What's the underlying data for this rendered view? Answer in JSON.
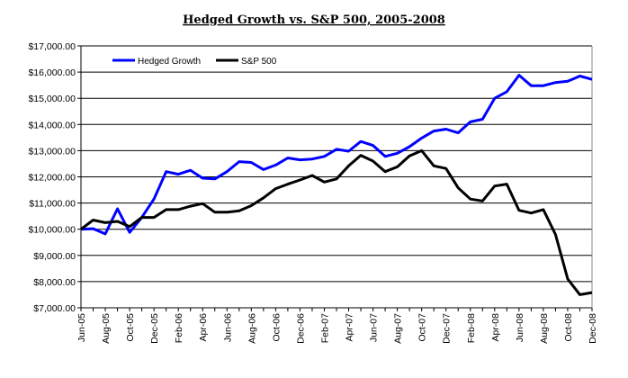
{
  "chart_data": {
    "type": "line",
    "title": "Hedged Growth vs. S&P 500, 2005-2008",
    "xlabel": "",
    "ylabel": "",
    "ylim": [
      7000,
      17000
    ],
    "ytick_step": 1000,
    "grid": "horizontal",
    "legend_placement": "top-left",
    "x": [
      "Jun-05",
      "Jul-05",
      "Aug-05",
      "Sep-05",
      "Oct-05",
      "Nov-05",
      "Dec-05",
      "Jan-06",
      "Feb-06",
      "Mar-06",
      "Apr-06",
      "May-06",
      "Jun-06",
      "Jul-06",
      "Aug-06",
      "Sep-06",
      "Oct-06",
      "Nov-06",
      "Dec-06",
      "Jan-07",
      "Feb-07",
      "Mar-07",
      "Apr-07",
      "May-07",
      "Jun-07",
      "Jul-07",
      "Aug-07",
      "Sep-07",
      "Oct-07",
      "Nov-07",
      "Dec-07",
      "Jan-08",
      "Feb-08",
      "Mar-08",
      "Apr-08",
      "May-08",
      "Jun-08",
      "Jul-08",
      "Aug-08",
      "Sep-08",
      "Oct-08",
      "Nov-08",
      "Dec-08"
    ],
    "x_tick_labels": [
      "Jun-05",
      "Aug-05",
      "Oct-05",
      "Dec-05",
      "Feb-06",
      "Apr-06",
      "Jun-06",
      "Aug-06",
      "Oct-06",
      "Dec-06",
      "Feb-07",
      "Apr-07",
      "Jun-07",
      "Aug-07",
      "Oct-07",
      "Dec-07",
      "Feb-08",
      "Apr-08",
      "Jun-08",
      "Aug-08",
      "Oct-08",
      "Dec-08"
    ],
    "y_tick_labels": [
      "$7,000.00",
      "$8,000.00",
      "$9,000.00",
      "$10,000.00",
      "$11,000.00",
      "$12,000.00",
      "$13,000.00",
      "$14,000.00",
      "$15,000.00",
      "$16,000.00",
      "$17,000.00"
    ],
    "series": [
      {
        "name": "Hedged Growth",
        "color": "#0000ff",
        "values": [
          10000,
          10020,
          9820,
          10780,
          9880,
          10450,
          11150,
          12200,
          12100,
          12250,
          11950,
          11920,
          12200,
          12580,
          12550,
          12280,
          12450,
          12720,
          12650,
          12680,
          12780,
          13050,
          12980,
          13350,
          13200,
          12780,
          12900,
          13150,
          13480,
          13750,
          13820,
          13680,
          14100,
          14200,
          15000,
          15250,
          15880,
          15480,
          15480,
          15600,
          15650,
          15850,
          15720
        ]
      },
      {
        "name": "S&P 500",
        "color": "#000000",
        "values": [
          10000,
          10350,
          10250,
          10300,
          10100,
          10450,
          10450,
          10750,
          10750,
          10880,
          10980,
          10650,
          10650,
          10700,
          10900,
          11200,
          11550,
          11720,
          11880,
          12050,
          11800,
          11920,
          12420,
          12820,
          12600,
          12200,
          12380,
          12800,
          13000,
          12420,
          12320,
          11580,
          11150,
          11080,
          11650,
          11720,
          10720,
          10620,
          10750,
          9800,
          8100,
          7500,
          7580
        ]
      }
    ]
  }
}
